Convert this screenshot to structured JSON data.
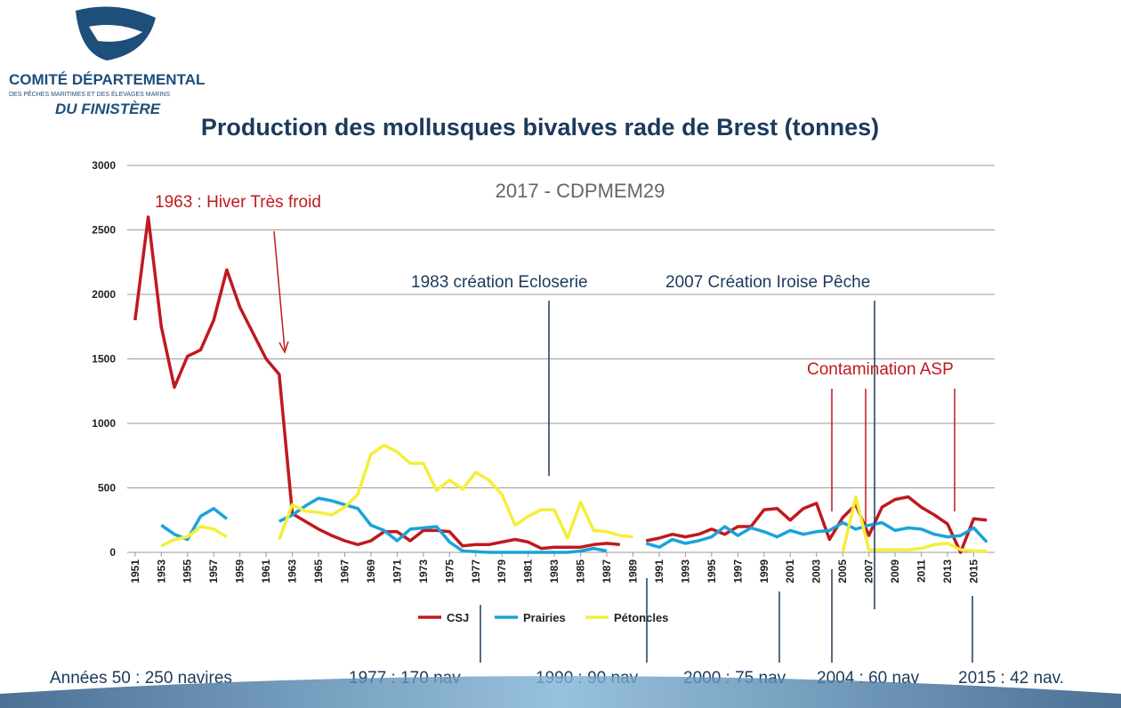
{
  "logo": {
    "line1": "COMITÉ DÉPARTEMENTAL",
    "line2": "DES PÊCHES MARITIMES ET DES ÉLEVAGES MARINS",
    "line3": "DU FINISTÈRE"
  },
  "chart_data": {
    "type": "line",
    "title": "Production  des mollusques bivalves rade de Brest (tonnes)",
    "subtitle": "2017 - CDPMEM29",
    "annotations": {
      "winter": "1963 : Hiver Très froid",
      "hatchery": "1983 création  Ecloserie",
      "iroise": "2007 Création Iroise Pêche",
      "asp": "Contamination ASP"
    },
    "fleet": [
      "Années 50 : 250 navires",
      "1977 : 170 nav",
      "1990 : 90 nav",
      "2000 : 75 nav",
      "2004 : 60 nav",
      "2015 : 42 nav."
    ],
    "x": [
      1951,
      1952,
      1953,
      1954,
      1955,
      1956,
      1957,
      1958,
      1959,
      1960,
      1961,
      1962,
      1963,
      1964,
      1965,
      1966,
      1967,
      1968,
      1969,
      1970,
      1971,
      1972,
      1973,
      1974,
      1975,
      1976,
      1977,
      1978,
      1979,
      1980,
      1981,
      1982,
      1983,
      1984,
      1985,
      1986,
      1987,
      1988,
      1989,
      1990,
      1991,
      1992,
      1993,
      1994,
      1995,
      1996,
      1997,
      1998,
      1999,
      2000,
      2001,
      2002,
      2003,
      2004,
      2005,
      2006,
      2007,
      2008,
      2009,
      2010,
      2011,
      2012,
      2013,
      2014,
      2015,
      2016
    ],
    "xlim": [
      1950.4,
      2016.6
    ],
    "xticks": [
      1951,
      1953,
      1955,
      1957,
      1959,
      1961,
      1963,
      1965,
      1967,
      1969,
      1971,
      1973,
      1975,
      1977,
      1979,
      1981,
      1983,
      1985,
      1987,
      1989,
      1991,
      1993,
      1995,
      1997,
      1999,
      2001,
      2003,
      2005,
      2007,
      2009,
      2011,
      2013,
      2015
    ],
    "ylim": [
      0,
      3000
    ],
    "yticks": [
      0,
      500,
      1000,
      1500,
      2000,
      2500,
      3000
    ],
    "grid": true,
    "legend": "bottom",
    "series": [
      {
        "name": "CSJ",
        "color": "#c0191e",
        "values": [
          1800,
          2600,
          1750,
          1280,
          1520,
          1570,
          1800,
          2190,
          1900,
          1700,
          1500,
          1380,
          300,
          240,
          180,
          130,
          90,
          60,
          90,
          160,
          160,
          90,
          170,
          170,
          160,
          50,
          60,
          60,
          80,
          100,
          80,
          30,
          40,
          40,
          40,
          60,
          70,
          60,
          null,
          90,
          110,
          140,
          120,
          140,
          180,
          140,
          200,
          200,
          330,
          340,
          250,
          340,
          380,
          100,
          270,
          370,
          130,
          350,
          410,
          430,
          350,
          290,
          220,
          0,
          260,
          250
        ]
      },
      {
        "name": "Prairies",
        "color": "#1aa3d9",
        "values": [
          null,
          null,
          210,
          140,
          100,
          280,
          340,
          260,
          null,
          null,
          null,
          240,
          290,
          360,
          420,
          400,
          370,
          340,
          210,
          170,
          90,
          180,
          190,
          200,
          80,
          10,
          5,
          0,
          0,
          0,
          0,
          0,
          0,
          0,
          10,
          30,
          10,
          null,
          null,
          70,
          40,
          100,
          70,
          90,
          120,
          200,
          130,
          190,
          160,
          120,
          170,
          140,
          160,
          170,
          230,
          180,
          210,
          230,
          170,
          190,
          180,
          140,
          120,
          130,
          190,
          80
        ]
      },
      {
        "name": "Pétoncles",
        "color": "#f3ef3a",
        "values": [
          null,
          null,
          50,
          100,
          120,
          200,
          180,
          120,
          null,
          null,
          null,
          100,
          370,
          320,
          310,
          290,
          350,
          450,
          760,
          830,
          780,
          690,
          690,
          480,
          560,
          490,
          620,
          560,
          450,
          210,
          280,
          330,
          330,
          110,
          390,
          170,
          160,
          130,
          120,
          null,
          null,
          null,
          null,
          null,
          null,
          null,
          null,
          null,
          null,
          null,
          null,
          null,
          null,
          null,
          0,
          430,
          20,
          20,
          20,
          20,
          30,
          60,
          70,
          20,
          10,
          10
        ]
      }
    ]
  }
}
